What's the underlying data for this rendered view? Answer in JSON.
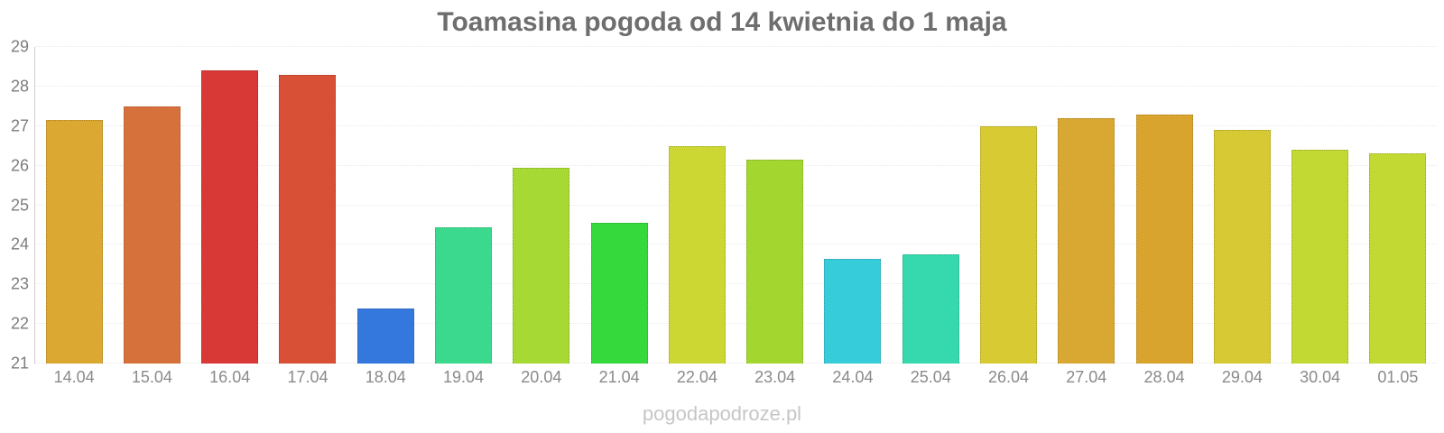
{
  "title": "Toamasina pogoda od 14 kwietnia do 1 maja",
  "watermark": "pogodapodroze.pl",
  "chart_data": {
    "type": "bar",
    "title": "Toamasina pogoda od 14 kwietnia do 1 maja",
    "categories": [
      "14.04",
      "15.04",
      "16.04",
      "17.04",
      "18.04",
      "19.04",
      "20.04",
      "21.04",
      "22.04",
      "23.04",
      "24.04",
      "25.04",
      "26.04",
      "27.04",
      "28.04",
      "29.04",
      "30.04",
      "01.05"
    ],
    "values": [
      27.15,
      27.5,
      28.4,
      28.3,
      22.4,
      24.45,
      25.95,
      24.55,
      26.5,
      26.15,
      23.65,
      23.75,
      27.0,
      27.2,
      27.3,
      26.9,
      26.4,
      26.3
    ],
    "bar_colors": [
      "#dba832",
      "#d7713c",
      "#d83936",
      "#d85036",
      "#3578dd",
      "#3bd98d",
      "#a7d934",
      "#35d93b",
      "#ccd733",
      "#a4d630",
      "#36ccd9",
      "#35d9ad",
      "#d7ca33",
      "#d9a833",
      "#d9a42d",
      "#d6c933",
      "#c3d933",
      "#c3d933"
    ],
    "xlabel": "",
    "ylabel": "",
    "ylim": [
      21,
      29
    ],
    "yticks": [
      21,
      22,
      23,
      24,
      25,
      26,
      27,
      28,
      29
    ],
    "grid": true,
    "legend": false,
    "title_color": "#6e6e6e",
    "tick_color": "#8a8a8a",
    "axis_color": "#cfcfcf",
    "grid_color": "#e9e9e9",
    "watermark_color": "#c6c6c6"
  }
}
